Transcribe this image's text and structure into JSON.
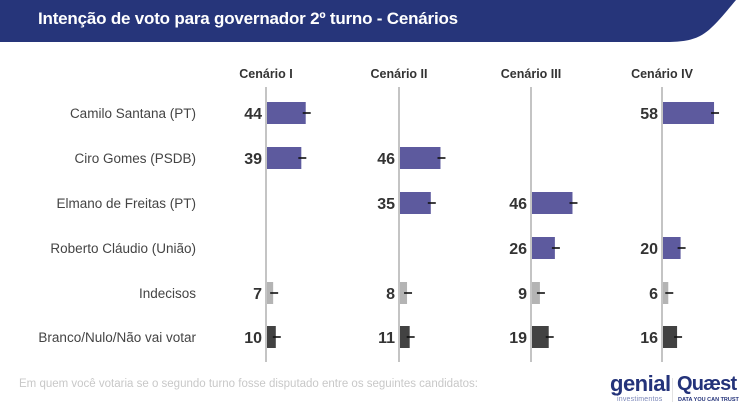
{
  "header": {
    "title": "Intenção de voto para governador 2º turno - Cenários",
    "band_color": "#26357a"
  },
  "footnote": "Em quem você votaria se o segundo turno fosse disputado entre os seguintes candidatos:",
  "logos": {
    "genial": {
      "word": "genial",
      "sub": "investimentos"
    },
    "quaest": {
      "word": "Quæst",
      "sub": "DATA YOU CAN TRUST"
    }
  },
  "colors": {
    "candidate": "#5d5a9e",
    "undecided": "#b4b4b4",
    "blank_null": "#424242",
    "axis": "#c4c4c4",
    "value_text": "#333333",
    "label_text": "#444444"
  },
  "chart_data": {
    "type": "bar",
    "orientation": "horizontal",
    "title": "Intenção de voto para governador 2º turno - Cenários",
    "categories": [
      "Camilo Santana (PT)",
      "Ciro Gomes (PSDB)",
      "Elmano de Freitas (PT)",
      "Roberto Cláudio (União)",
      "Indecisos",
      "Branco/Nulo/Não vai votar"
    ],
    "category_kind": [
      "candidate",
      "candidate",
      "candidate",
      "candidate",
      "undecided",
      "blank_null"
    ],
    "series": [
      {
        "name": "Cenário I",
        "values": [
          44,
          39,
          null,
          null,
          7,
          10
        ]
      },
      {
        "name": "Cenário II",
        "values": [
          null,
          46,
          35,
          null,
          8,
          11
        ]
      },
      {
        "name": "Cenário III",
        "values": [
          null,
          null,
          46,
          26,
          9,
          19
        ]
      },
      {
        "name": "Cenário IV",
        "values": [
          58,
          null,
          null,
          20,
          6,
          16
        ]
      }
    ],
    "unit": "%",
    "error_bars": true,
    "xlim": [
      0,
      100
    ],
    "grid": false,
    "legend": "none"
  }
}
